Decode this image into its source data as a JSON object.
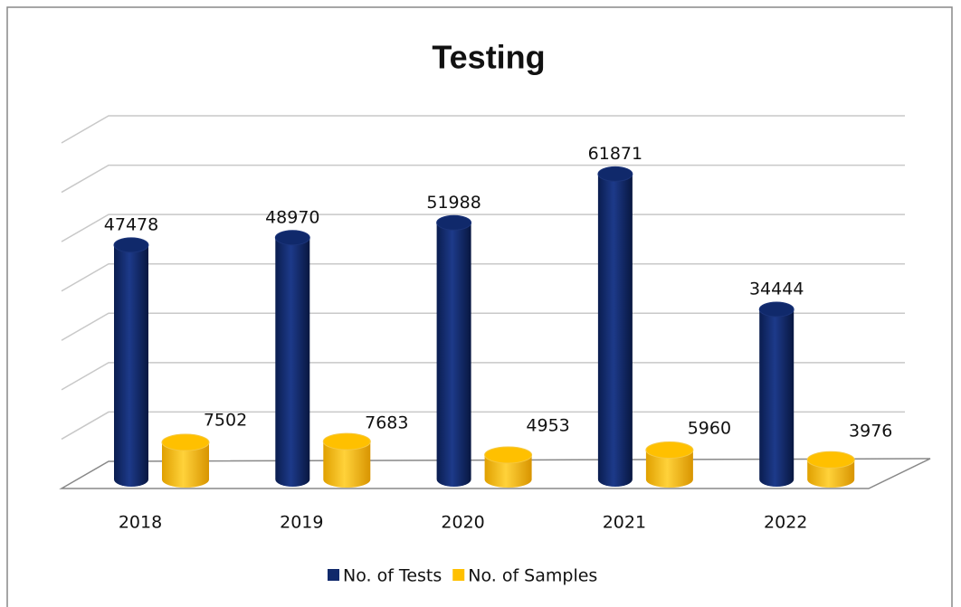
{
  "chart_data": {
    "type": "bar3d",
    "title": "Testing",
    "categories": [
      "2018",
      "2019",
      "2020",
      "2021",
      "2022"
    ],
    "series": [
      {
        "name": "No. of Tests",
        "color": "#10296b",
        "values": [
          47478,
          48970,
          51988,
          61871,
          34444
        ]
      },
      {
        "name": "No. of Samples",
        "color": "#ffc000",
        "values": [
          7502,
          7683,
          4953,
          5960,
          3976
        ]
      }
    ],
    "ylim": [
      0,
      70000
    ],
    "yticks": [
      0,
      10000,
      20000,
      30000,
      40000,
      50000,
      60000,
      70000
    ],
    "grid": true
  }
}
